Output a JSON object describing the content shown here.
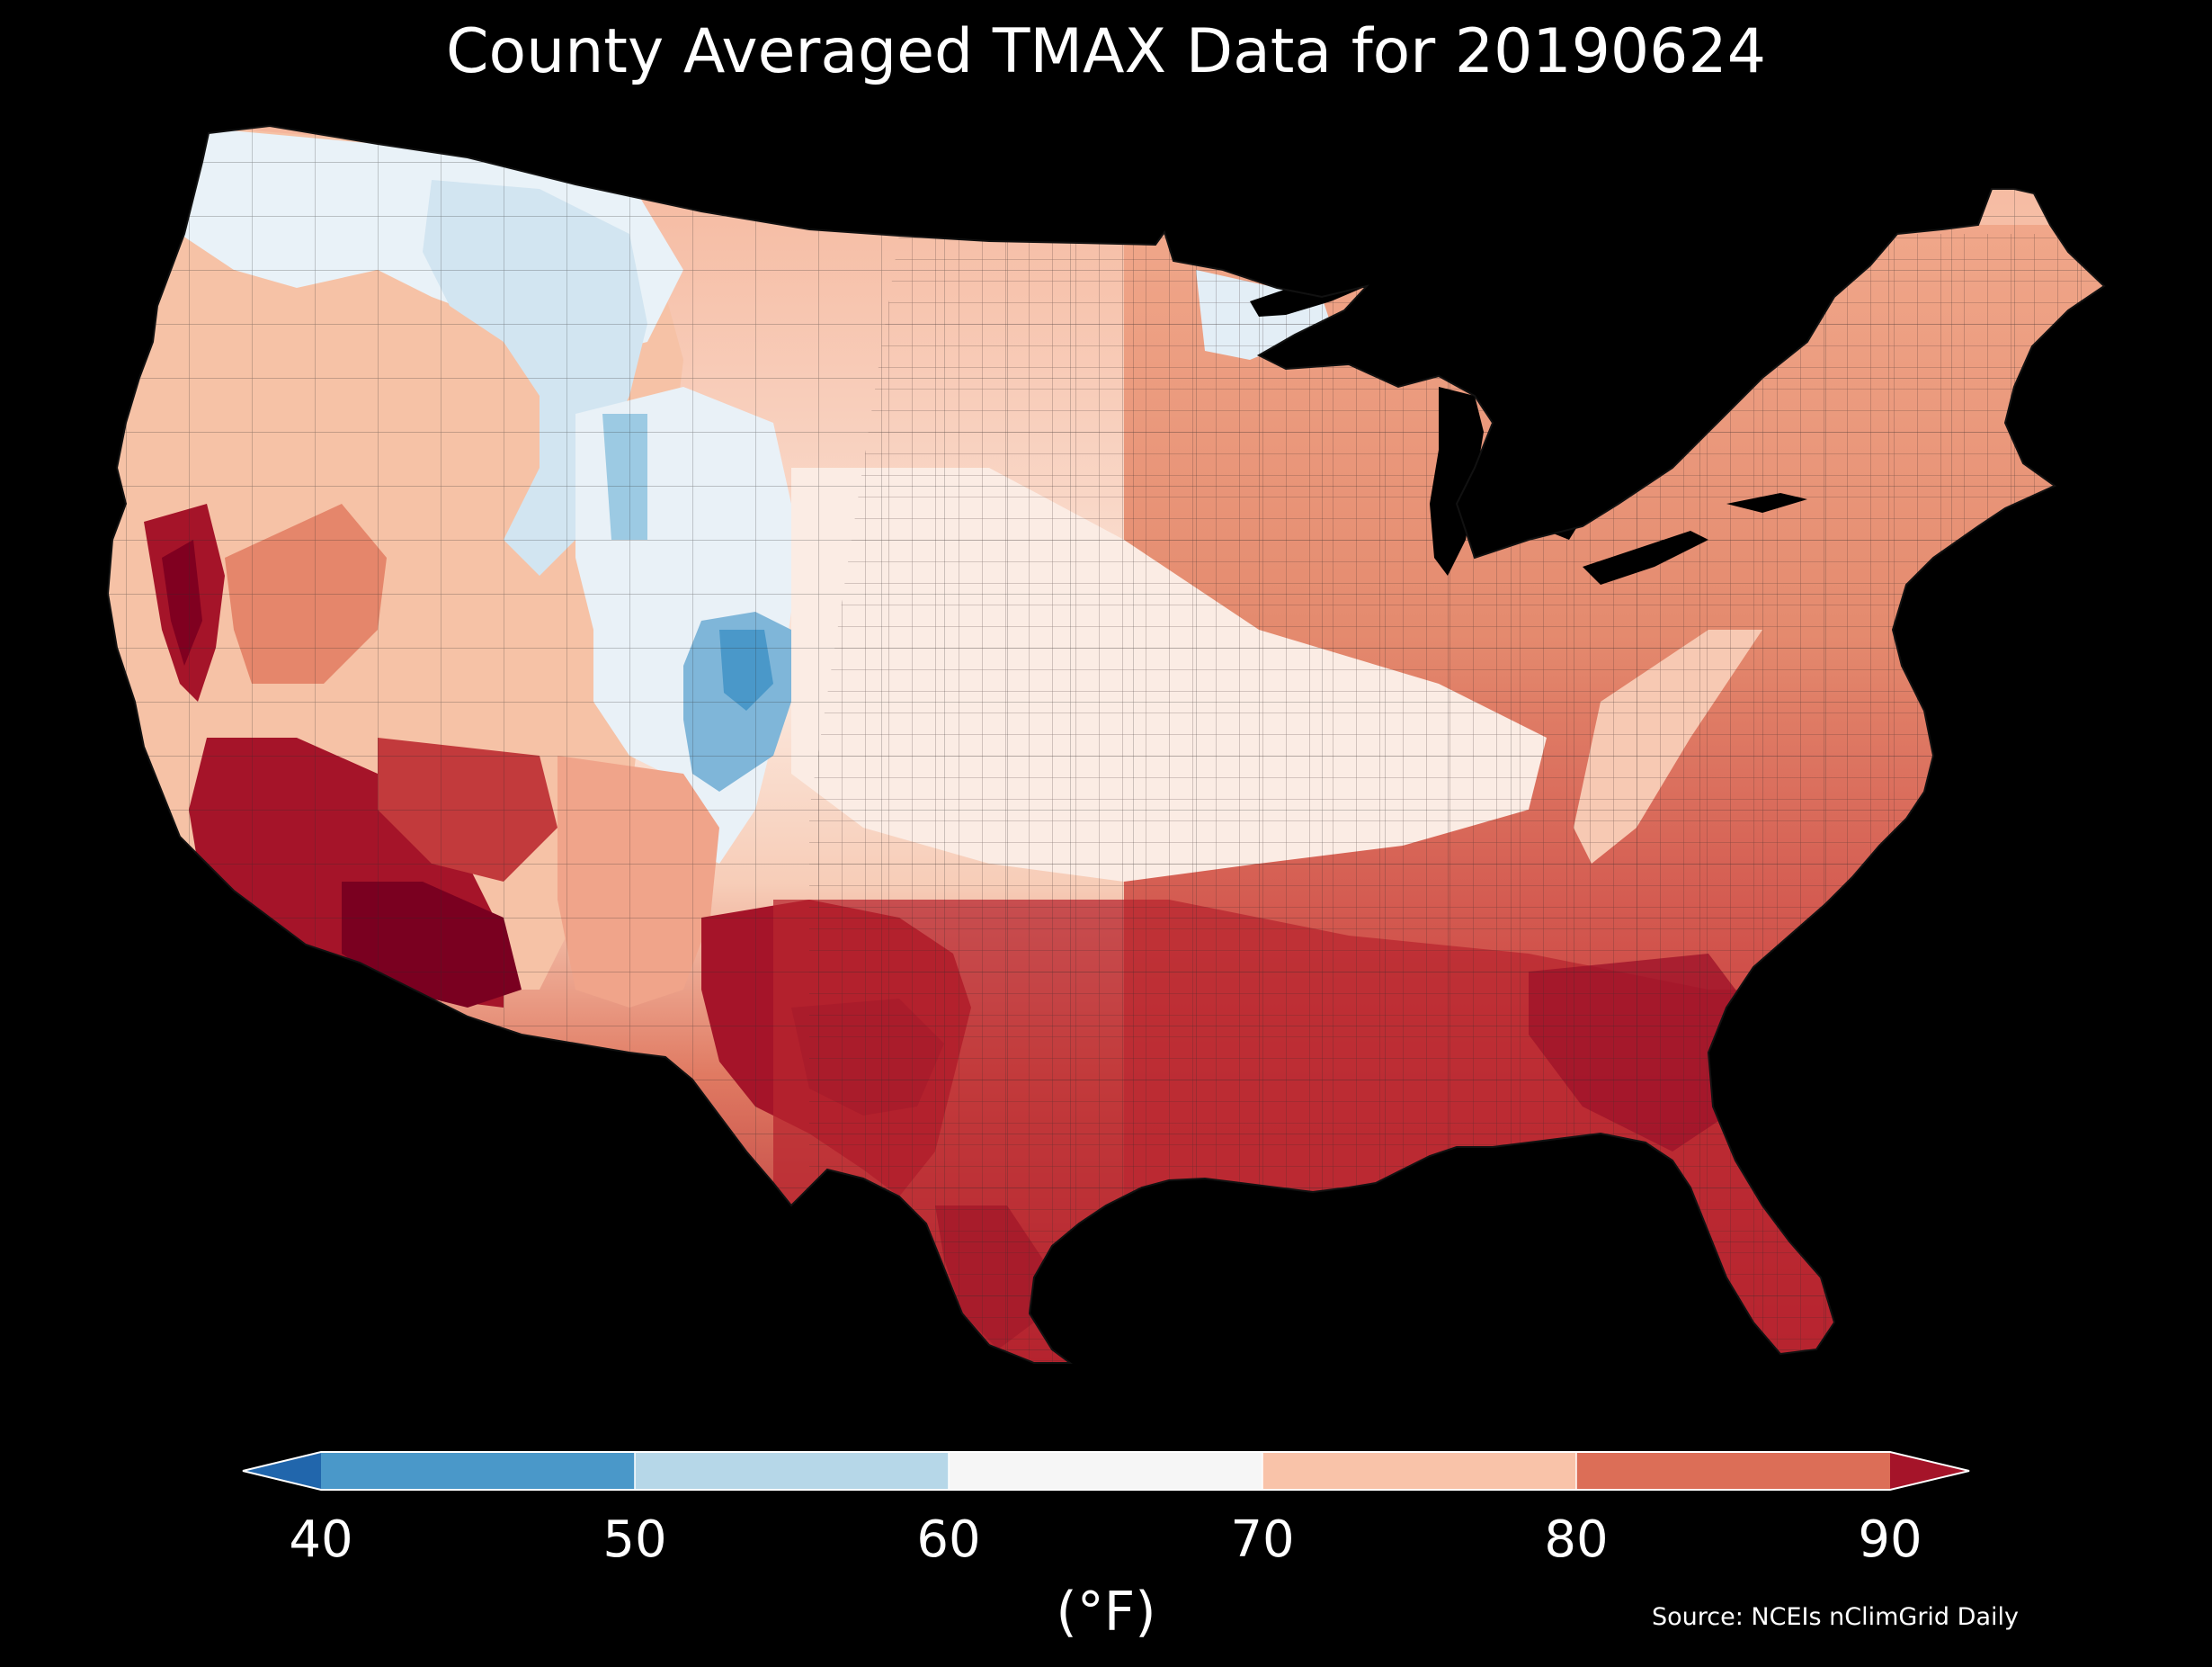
{
  "title": "County Averaged TMAX Data for 20190624",
  "colorbar": {
    "unit_label": "(°F)",
    "ticks": [
      "40",
      "50",
      "60",
      "70",
      "80",
      "90"
    ],
    "bins": [
      {
        "range": "<40",
        "color": "#2166ac"
      },
      {
        "range": "40-50",
        "color": "#4a98c9"
      },
      {
        "range": "50-60",
        "color": "#b6d7e8"
      },
      {
        "range": "60-70",
        "color": "#f6f6f6"
      },
      {
        "range": "70-80",
        "color": "#f9c3a9"
      },
      {
        "range": "80-90",
        "color": "#dc6e57"
      },
      {
        "range": ">90",
        "color": "#a51429"
      }
    ]
  },
  "source": "Source: NCEIs nClimGrid Daily",
  "map": {
    "extent": "conterminous United States",
    "variable": "TMAX",
    "units": "°F",
    "regions": [
      {
        "name": "northwest",
        "value_range": "60-70",
        "color": "#e8f1f7"
      },
      {
        "name": "northern-rockies",
        "value_range": "50-60",
        "color": "#c6dff0"
      },
      {
        "name": "colorado-rockies",
        "value_range": "40-50",
        "color": "#6aabd2"
      },
      {
        "name": "great-plains-north",
        "value_range": "70-80",
        "color": "#f7c4a8"
      },
      {
        "name": "central-plains",
        "value_range": "60-70",
        "color": "#fbe9e0"
      },
      {
        "name": "great-basin",
        "value_range": "70-80",
        "color": "#f5b49a"
      },
      {
        "name": "california-central-valley",
        "value_range": ">90",
        "color": "#a51429"
      },
      {
        "name": "desert-southwest",
        "value_range": ">90",
        "color": "#800020"
      },
      {
        "name": "texas",
        "value_range": ">90",
        "color": "#9a0f28"
      },
      {
        "name": "southeast",
        "value_range": "80-90",
        "color": "#c43a3d"
      },
      {
        "name": "midwest-east",
        "value_range": "80-90",
        "color": "#e48a6e"
      },
      {
        "name": "northeast",
        "value_range": "80-90",
        "color": "#e8906f"
      },
      {
        "name": "appalachia",
        "value_range": "70-80",
        "color": "#f4bda2"
      }
    ]
  }
}
